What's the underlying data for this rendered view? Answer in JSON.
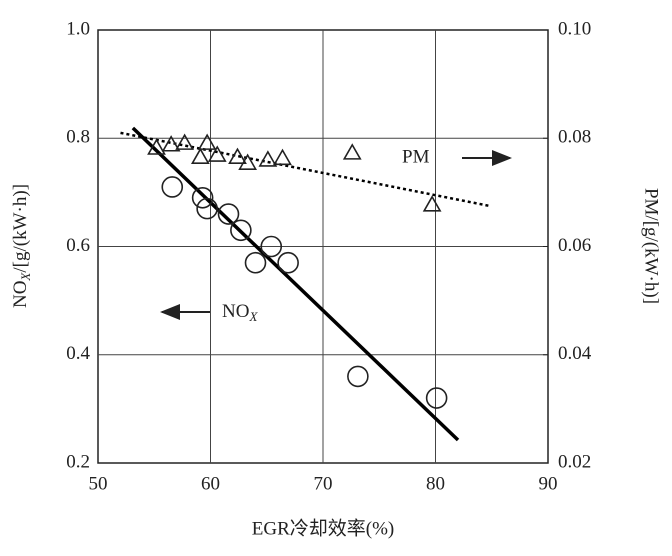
{
  "chart_data": {
    "type": "scatter",
    "xlabel": "EGR冷却效率(%)",
    "ylabel_parts": [
      "NO",
      "X",
      "/[g/(kW·h)]"
    ],
    "y2label": "PM/[g/(kW·h)]",
    "xlim": [
      50,
      90
    ],
    "xticks": [
      50,
      60,
      70,
      80,
      90
    ],
    "ylim": [
      0.2,
      1.0
    ],
    "yticks": [
      0.2,
      0.4,
      0.6,
      0.8,
      {
        "value": 1,
        "label": "1.0"
      }
    ],
    "y2lim": [
      0.02,
      0.1
    ],
    "y2ticks": [
      0.02,
      0.04,
      0.06,
      0.08,
      {
        "value": 0.1,
        "label": "0.10"
      }
    ],
    "grid": true,
    "series": [
      {
        "marker": "circle",
        "color": "#222222",
        "x": [
          56.6,
          59.3,
          59.7,
          61.6,
          62.7,
          64.0,
          65.4,
          66.9,
          73.1,
          80.1
        ],
        "values": [
          0.71,
          0.69,
          0.67,
          0.66,
          0.63,
          0.57,
          0.6,
          0.57,
          0.36,
          0.32
        ]
      },
      {
        "marker": "triangle",
        "color": "#222222",
        "axis": "y2",
        "x": [
          55.2,
          56.5,
          57.7,
          59.7,
          59.1,
          60.6,
          62.4,
          63.3,
          65.1,
          66.4,
          72.6,
          79.7
        ],
        "values": [
          0.0782,
          0.0788,
          0.0791,
          0.0791,
          0.0765,
          0.0769,
          0.0765,
          0.0754,
          0.076,
          0.0763,
          0.0773,
          0.0677
        ]
      }
    ],
    "fit_lines": [
      {
        "style": "solid",
        "color": "#000000",
        "x": [
          53.1,
          82.0
        ],
        "values": [
          0.819,
          0.2425
        ]
      },
      {
        "style": "dotted",
        "color": "#000000",
        "axis": "y2",
        "x": [
          52.0,
          84.8
        ],
        "values": [
          0.081,
          0.0675
        ]
      }
    ],
    "annotations": {
      "nox_parts": [
        "NO",
        "X"
      ],
      "pm": "PM"
    }
  }
}
